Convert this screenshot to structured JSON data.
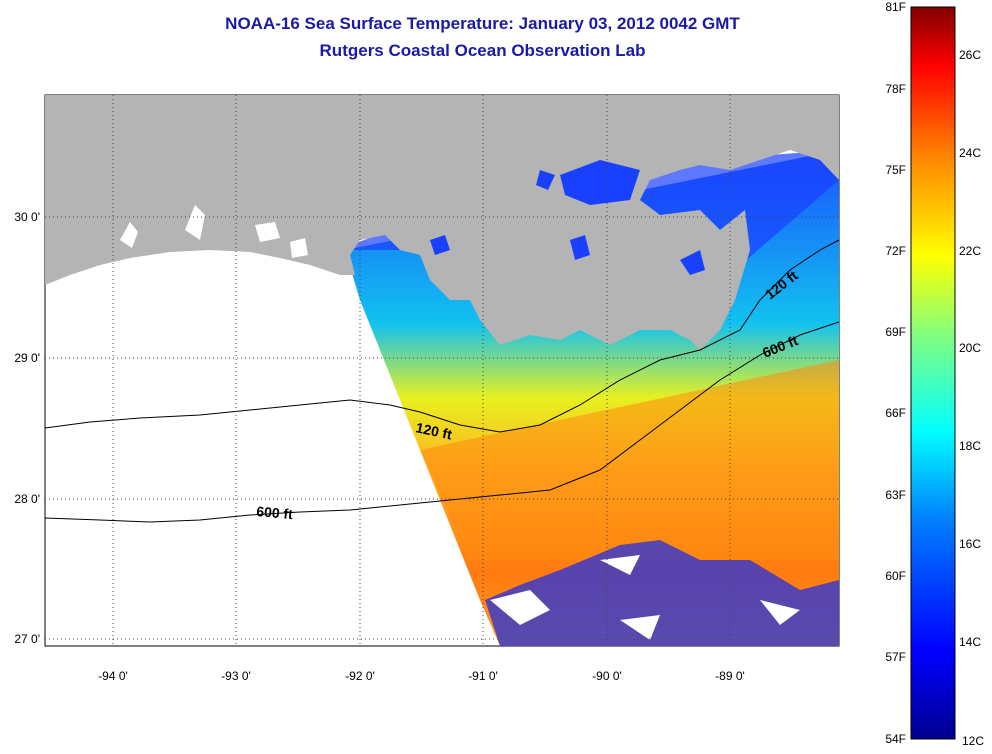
{
  "title": "NOAA-16 Sea Surface Temperature:  January 03, 2012 0042 GMT",
  "subtitle": "Rutgers Coastal Ocean Observation Lab",
  "map": {
    "lat_labels": [
      "30 0'",
      "29 0'",
      "28 0'",
      "27 0'"
    ],
    "lon_labels": [
      "-94 0'",
      "-93 0'",
      "-92 0'",
      "-91 0'",
      "-90 0'",
      "-89 0'"
    ],
    "contours": [
      {
        "label": "120 ft"
      },
      {
        "label": "600 ft"
      },
      {
        "label": "120 ft"
      },
      {
        "label": "600 ft"
      }
    ],
    "colors": {
      "land": "#b4b4b4",
      "nodata": "#ffffff",
      "grid": "#444444"
    }
  },
  "colorbar": {
    "f_labels": [
      "81F",
      "78F",
      "75F",
      "72F",
      "69F",
      "66F",
      "63F",
      "60F",
      "57F",
      "54F"
    ],
    "c_labels": [
      "26C",
      "24C",
      "22C",
      "20C",
      "18C",
      "16C",
      "14C",
      "12C"
    ],
    "colors": [
      "#00008f",
      "#0000ff",
      "#0080ff",
      "#00ffff",
      "#80ff80",
      "#ffff00",
      "#ff8000",
      "#ff0000",
      "#800000"
    ]
  }
}
